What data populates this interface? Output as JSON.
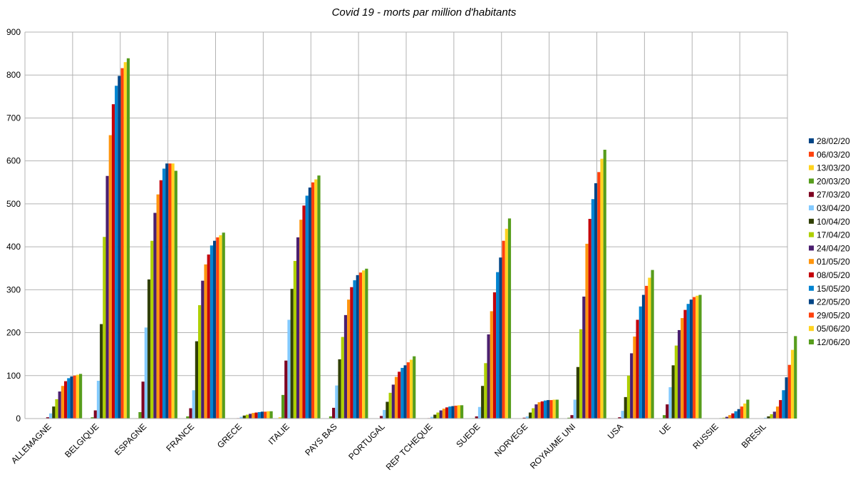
{
  "chart_data": {
    "type": "bar",
    "title": "Covid 19 - morts par million d'habitants",
    "xlabel": "",
    "ylabel": "",
    "ylim": [
      0,
      900
    ],
    "yticks": [
      0,
      100,
      200,
      300,
      400,
      500,
      600,
      700,
      800,
      900
    ],
    "grid": true,
    "legend_position": "right",
    "categories": [
      "ALLEMAGNE",
      "BELGIQUE",
      "ESPAGNE",
      "FRANCE",
      "GRECE",
      "ITALIE",
      "PAYS BAS",
      "PORTUGAL",
      "REP TCHEQUE",
      "SUEDE",
      "NORVEGE",
      "ROYAUME UNI",
      "USA",
      "UE",
      "RUSSIE",
      "BRESIL"
    ],
    "series": [
      {
        "name": "28/02/20",
        "color": "#004586",
        "values": [
          0,
          0,
          0,
          0,
          0,
          0,
          0,
          0,
          0,
          0,
          0,
          0,
          0,
          0,
          0,
          0
        ]
      },
      {
        "name": "06/03/20",
        "color": "#ff420e",
        "values": [
          0,
          0,
          0,
          0,
          0,
          0.2,
          0,
          0,
          0,
          0,
          0,
          0,
          0,
          0,
          0,
          0
        ]
      },
      {
        "name": "13/03/20",
        "color": "#ffd320",
        "values": [
          0,
          0.3,
          1,
          0.5,
          0,
          3,
          0.3,
          0,
          0,
          0,
          0,
          0.2,
          0.1,
          0.5,
          0,
          0
        ]
      },
      {
        "name": "20/03/20",
        "color": "#579d1c",
        "values": [
          0.5,
          3,
          15,
          5,
          0.3,
          55,
          5,
          0.6,
          0,
          1,
          0.5,
          2,
          0.5,
          8,
          0,
          0
        ]
      },
      {
        "name": "27/03/20",
        "color": "#7e0021",
        "values": [
          3,
          19,
          86,
          24,
          1,
          135,
          25,
          6,
          1,
          5,
          2,
          8,
          3,
          33,
          0,
          0.5
        ]
      },
      {
        "name": "03/04/20",
        "color": "#83caff",
        "values": [
          12,
          88,
          212,
          66,
          4,
          230,
          77,
          20,
          4,
          27,
          5,
          44,
          18,
          73,
          0.1,
          2
        ]
      },
      {
        "name": "10/04/20",
        "color": "#314004",
        "values": [
          28,
          220,
          324,
          180,
          7,
          302,
          138,
          39,
          9,
          76,
          14,
          120,
          50,
          124,
          1,
          5
        ]
      },
      {
        "name": "17/04/20",
        "color": "#aecf00",
        "values": [
          45,
          423,
          414,
          264,
          9,
          367,
          190,
          60,
          14,
          129,
          24,
          208,
          100,
          170,
          2,
          10
        ]
      },
      {
        "name": "24/04/20",
        "color": "#4b1f6f",
        "values": [
          63,
          565,
          479,
          321,
          11,
          422,
          241,
          79,
          19,
          196,
          33,
          284,
          152,
          206,
          4,
          16
        ]
      },
      {
        "name": "01/05/20",
        "color": "#ff950e",
        "values": [
          76,
          660,
          522,
          359,
          13,
          463,
          277,
          97,
          23,
          250,
          38,
          407,
          191,
          234,
          8,
          28
        ]
      },
      {
        "name": "08/05/20",
        "color": "#c5000b",
        "values": [
          87,
          732,
          555,
          382,
          14,
          496,
          306,
          109,
          26,
          294,
          40,
          465,
          230,
          253,
          12,
          43
        ]
      },
      {
        "name": "15/05/20",
        "color": "#0084d1",
        "values": [
          94,
          775,
          582,
          403,
          15,
          519,
          322,
          118,
          28,
          341,
          42,
          511,
          261,
          267,
          17,
          66
        ]
      },
      {
        "name": "22/05/20",
        "color": "#004586",
        "values": [
          98,
          798,
          594,
          414,
          16,
          538,
          334,
          124,
          29,
          375,
          43,
          548,
          288,
          277,
          22,
          96
        ]
      },
      {
        "name": "29/05/20",
        "color": "#ff420e",
        "values": [
          100,
          816,
          594,
          422,
          16,
          550,
          340,
          131,
          30,
          414,
          43,
          574,
          309,
          283,
          28,
          125
        ]
      },
      {
        "name": "05/06/20",
        "color": "#ffd320",
        "values": [
          102,
          830,
          594,
          427,
          17,
          557,
          345,
          137,
          31,
          442,
          44,
          605,
          328,
          286,
          35,
          160
        ]
      },
      {
        "name": "12/06/20",
        "color": "#579d1c",
        "values": [
          104,
          839,
          577,
          433,
          17,
          566,
          349,
          145,
          31,
          466,
          44,
          626,
          346,
          288,
          44,
          192
        ]
      }
    ]
  }
}
